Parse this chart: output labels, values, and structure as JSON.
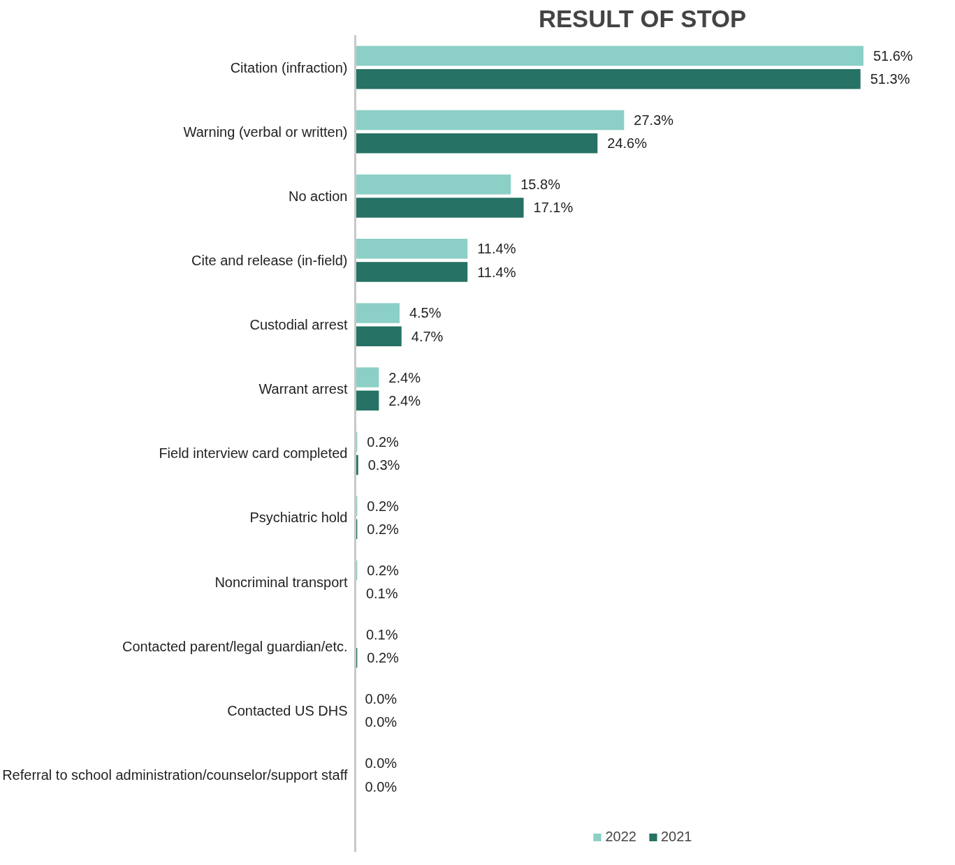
{
  "chart_data": {
    "type": "bar",
    "orientation": "horizontal",
    "title": "RESULT OF STOP",
    "categories": [
      "Citation (infraction)",
      "Warning (verbal or written)",
      "No action",
      "Cite and release (in-field)",
      "Custodial arrest",
      "Warrant arrest",
      "Field interview card completed",
      "Psychiatric hold",
      "Noncriminal transport",
      "Contacted parent/legal guardian/etc.",
      "Contacted US DHS",
      "Referral to school administration/counselor/support staff"
    ],
    "series": [
      {
        "name": "2022",
        "color": "#8ccfc6",
        "values": [
          51.6,
          27.3,
          15.8,
          11.4,
          4.5,
          2.4,
          0.2,
          0.2,
          0.2,
          0.1,
          0.0,
          0.0
        ],
        "value_labels": [
          "51.6%",
          "27.3%",
          "15.8%",
          "11.4%",
          "4.5%",
          "2.4%",
          "0.2%",
          "0.2%",
          "0.2%",
          "0.1%",
          "0.0%",
          "0.0%"
        ]
      },
      {
        "name": "2021",
        "color": "#267264",
        "values": [
          51.3,
          24.6,
          17.1,
          11.4,
          4.7,
          2.4,
          0.3,
          0.2,
          0.1,
          0.2,
          0.0,
          0.0
        ],
        "value_labels": [
          "51.3%",
          "24.6%",
          "17.1%",
          "11.4%",
          "4.7%",
          "2.4%",
          "0.3%",
          "0.2%",
          "0.1%",
          "0.2%",
          "0.0%",
          "0.0%"
        ]
      }
    ],
    "legend": "bottom",
    "grid": false
  }
}
